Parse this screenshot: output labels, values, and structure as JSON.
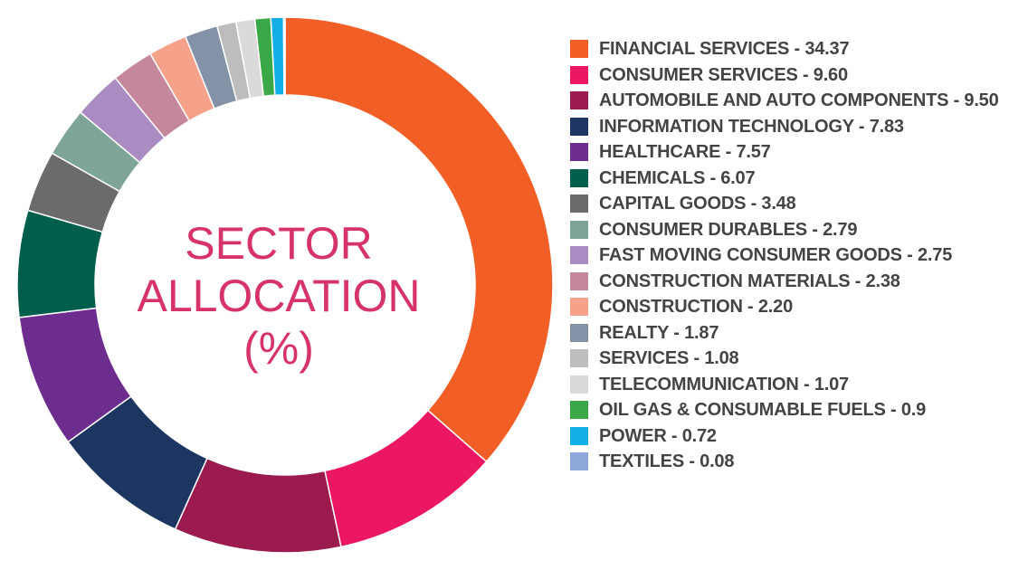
{
  "center": {
    "line1": "SECTOR",
    "line2": "ALLOCATION",
    "line3": "(%)"
  },
  "chart_data": {
    "type": "pie",
    "title": "SECTOR ALLOCATION (%)",
    "categories": [
      "FINANCIAL SERVICES",
      "CONSUMER SERVICES",
      "AUTOMOBILE AND AUTO COMPONENTS",
      "INFORMATION TECHNOLOGY",
      "HEALTHCARE",
      "CHEMICALS",
      "CAPITAL GOODS",
      "CONSUMER DURABLES",
      "FAST MOVING CONSUMER GOODS",
      "CONSTRUCTION MATERIALS",
      "CONSTRUCTION",
      "REALTY",
      "SERVICES",
      "TELECOMMUNICATION",
      "OIL GAS & CONSUMABLE FUELS",
      "POWER",
      "TEXTILES"
    ],
    "values": [
      34.37,
      9.6,
      9.5,
      7.83,
      7.57,
      6.07,
      3.48,
      2.79,
      2.75,
      2.38,
      2.2,
      1.87,
      1.08,
      1.07,
      0.9,
      0.72,
      0.08
    ],
    "colors": [
      "#f15f27",
      "#ec1763",
      "#9b1b4f",
      "#1d3661",
      "#6c2d8e",
      "#005e4c",
      "#6b6b6b",
      "#7fa498",
      "#ab8cc2",
      "#c5879b",
      "#f6a28a",
      "#8392a6",
      "#bdbdbd",
      "#dadada",
      "#3aa847",
      "#11aee8",
      "#8da8d9"
    ],
    "legend": {
      "placement": "right"
    },
    "legend_labels": [
      "FINANCIAL SERVICES - 34.37",
      "CONSUMER SERVICES - 9.60",
      "AUTOMOBILE AND AUTO COMPONENTS - 9.50",
      "INFORMATION TECHNOLOGY - 7.83",
      "HEALTHCARE - 7.57",
      "CHEMICALS - 6.07",
      "CAPITAL GOODS - 3.48",
      "CONSUMER DURABLES - 2.79",
      "FAST MOVING CONSUMER GOODS - 2.75",
      "CONSTRUCTION MATERIALS - 2.38",
      "CONSTRUCTION - 2.20",
      "REALTY - 1.87",
      "SERVICES - 1.08",
      "TELECOMMUNICATION - 1.07",
      "OIL GAS & CONSUMABLE FUELS  - 0.9",
      "POWER  - 0.72",
      "TEXTILES - 0.08"
    ]
  }
}
